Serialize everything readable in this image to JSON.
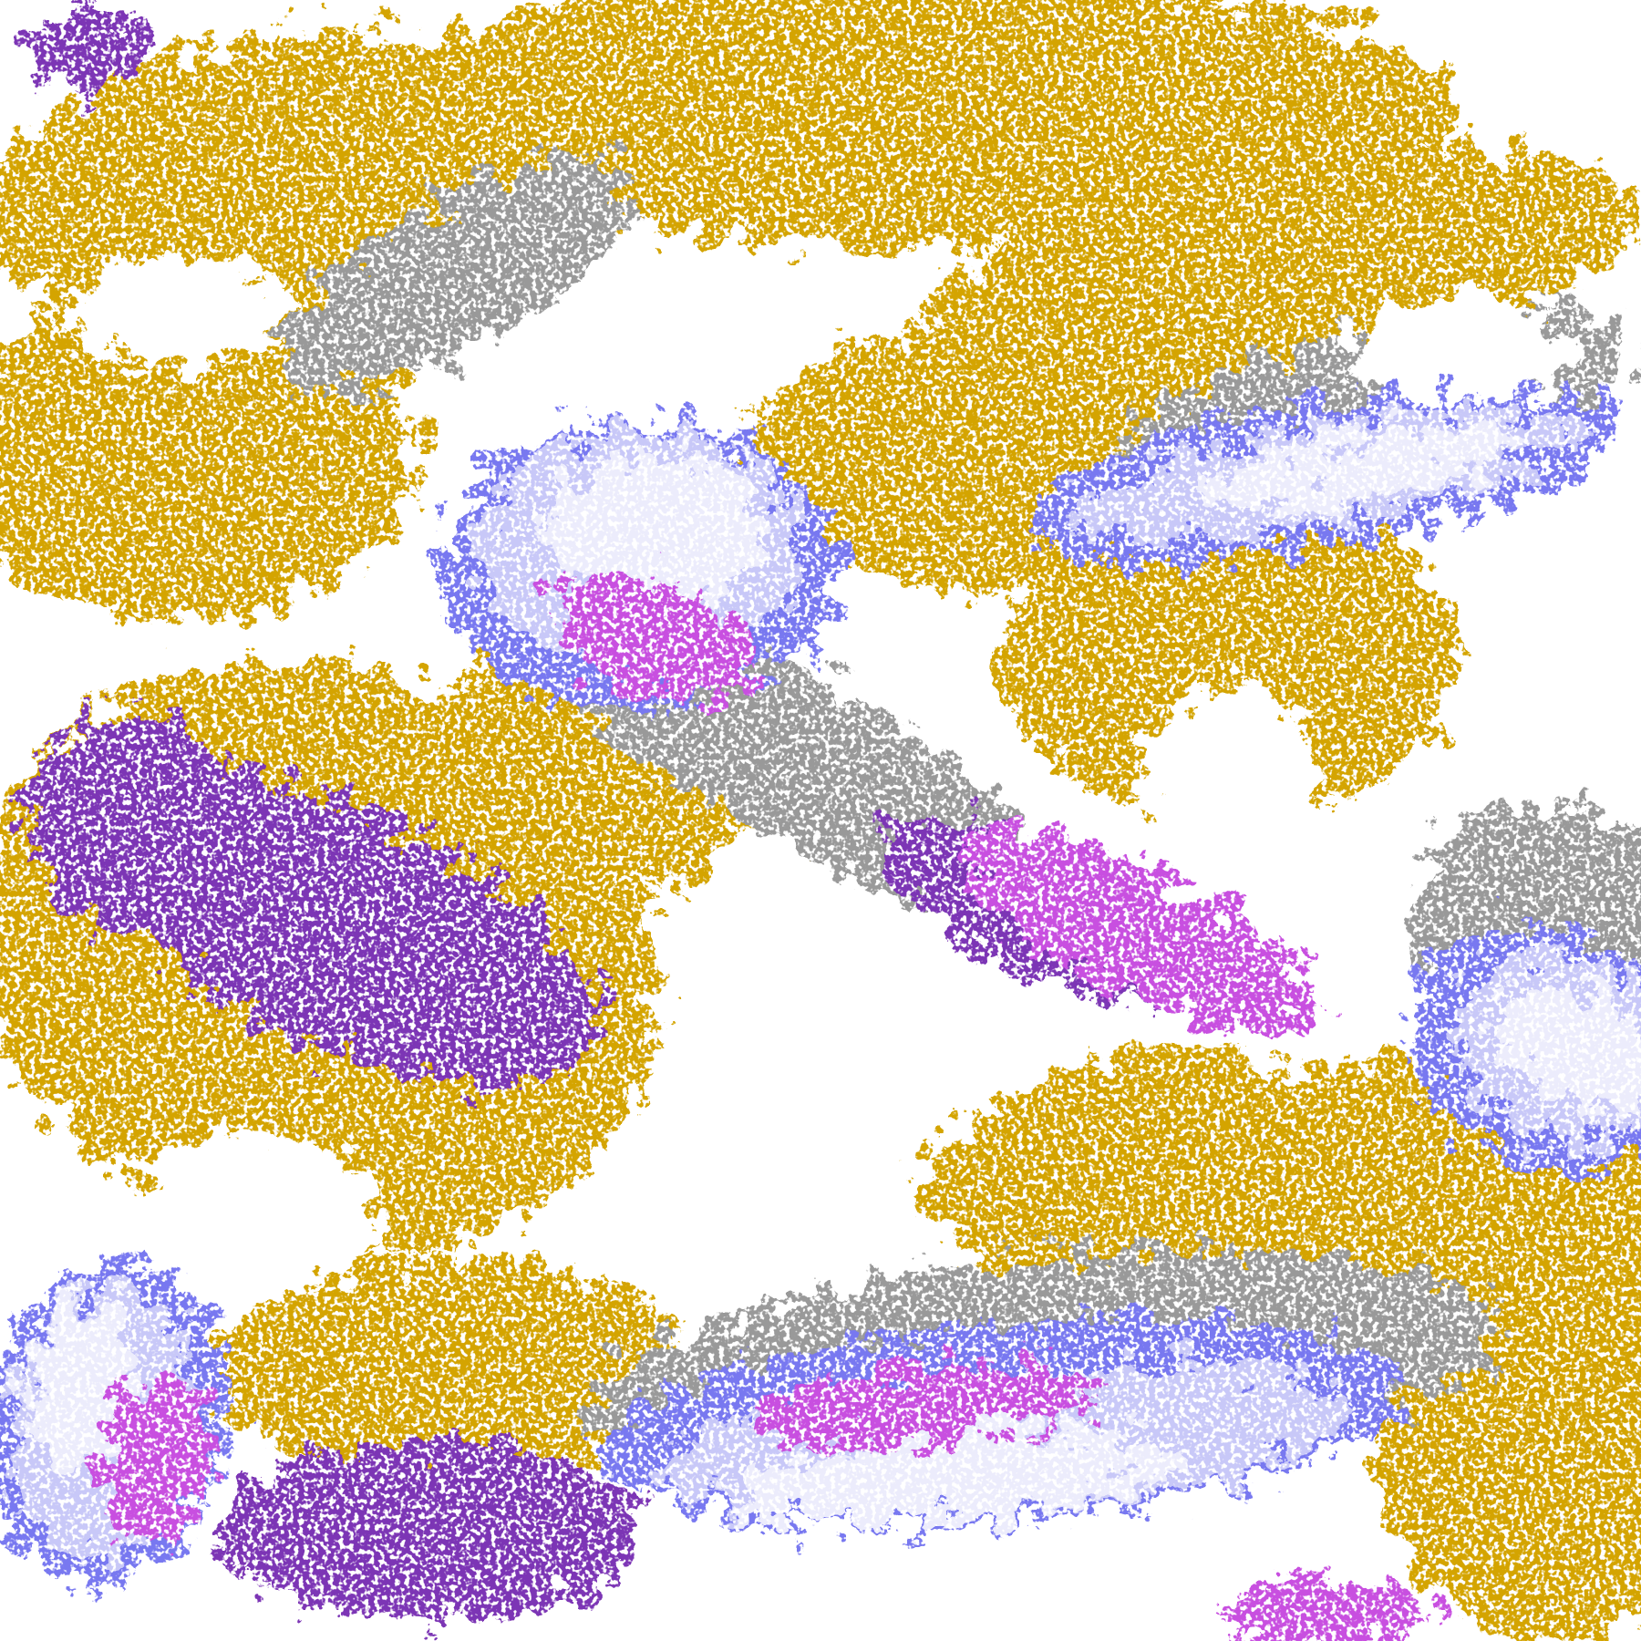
{
  "palette": {
    "background": "#ffffff",
    "gold": "#d4a400",
    "dark_gold": "#b88a00",
    "purple": "#7b35b5",
    "magenta": "#c850e0",
    "blue": "#7878f0",
    "lavender": "#c8c8f8",
    "pale": "#ececfc",
    "gray": "#999999",
    "light_gray": "#bdbdbd"
  }
}
